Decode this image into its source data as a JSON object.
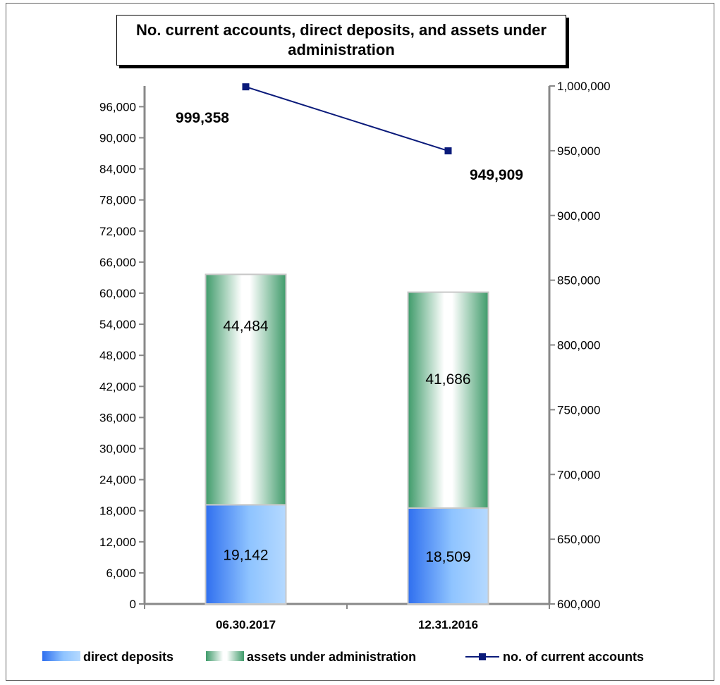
{
  "chart_data": {
    "type": "bar",
    "title": "No. current accounts, direct deposits, and assets under administration",
    "categories": [
      "06.30.2017",
      "12.31.2016"
    ],
    "series": [
      {
        "name": "direct deposits",
        "type": "bar",
        "stack": "main",
        "axis": "left",
        "values": [
          19142,
          18509
        ],
        "labels": [
          "19,142",
          "18,509"
        ],
        "color": "#4d94f5"
      },
      {
        "name": "assets under administration",
        "type": "bar",
        "stack": "main",
        "axis": "left",
        "values": [
          44484,
          41686
        ],
        "labels": [
          "44,484",
          "41,686"
        ],
        "color": "#3f9b6a"
      },
      {
        "name": "no. of current accounts",
        "type": "line",
        "axis": "right",
        "values": [
          999358,
          949909
        ],
        "labels": [
          "999,358",
          "949,909"
        ],
        "color": "#0a1a7a"
      }
    ],
    "y_left": {
      "ylim": [
        0,
        100000
      ],
      "ticks": [
        0,
        6000,
        12000,
        18000,
        24000,
        30000,
        36000,
        42000,
        48000,
        54000,
        60000,
        66000,
        72000,
        78000,
        84000,
        90000,
        96000
      ],
      "tick_labels": [
        "0",
        "6,000",
        "12,000",
        "18,000",
        "24,000",
        "30,000",
        "36,000",
        "42,000",
        "48,000",
        "54,000",
        "60,000",
        "66,000",
        "72,000",
        "78,000",
        "84,000",
        "90,000",
        "96,000"
      ]
    },
    "y_right": {
      "ylim": [
        600000,
        1000000
      ],
      "ticks": [
        600000,
        650000,
        700000,
        750000,
        800000,
        850000,
        900000,
        950000,
        1000000
      ],
      "tick_labels": [
        "600,000",
        "650,000",
        "700,000",
        "750,000",
        "800,000",
        "850,000",
        "900,000",
        "950,000",
        "1,000,000"
      ]
    },
    "grid": false,
    "legend": "bottom"
  }
}
